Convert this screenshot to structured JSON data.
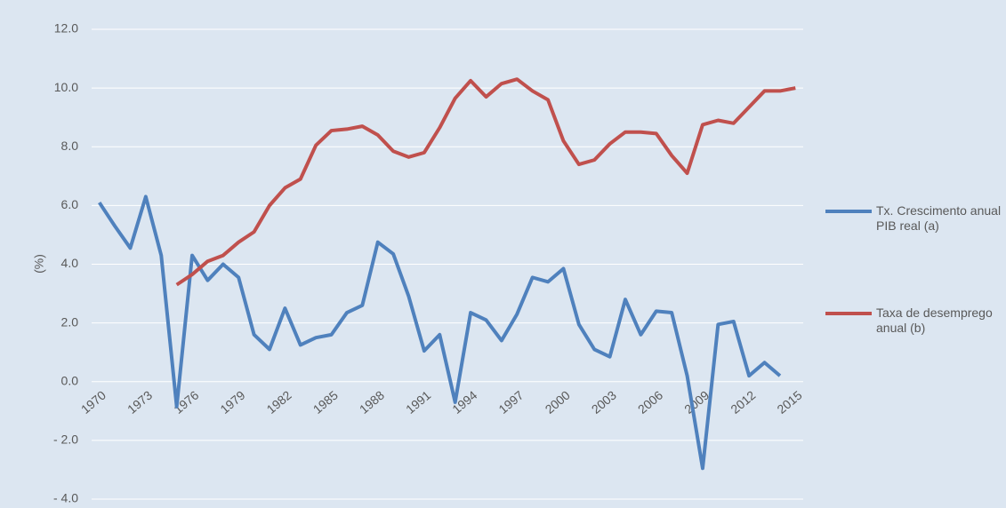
{
  "chart_data": {
    "type": "line",
    "y_label": "(%)",
    "x": [
      1970,
      1971,
      1972,
      1973,
      1974,
      1975,
      1976,
      1977,
      1978,
      1979,
      1980,
      1981,
      1982,
      1983,
      1984,
      1985,
      1986,
      1987,
      1988,
      1989,
      1990,
      1991,
      1992,
      1993,
      1994,
      1995,
      1996,
      1997,
      1998,
      1999,
      2000,
      2001,
      2002,
      2003,
      2004,
      2005,
      2006,
      2007,
      2008,
      2009,
      2010,
      2011,
      2012,
      2013,
      2014,
      2015
    ],
    "xlim": [
      1969.5,
      2015.5
    ],
    "xticks": [
      1970,
      1973,
      1976,
      1979,
      1982,
      1985,
      1988,
      1991,
      1994,
      1997,
      2000,
      2003,
      2006,
      2009,
      2012,
      2015
    ],
    "ylim": [
      -4,
      12
    ],
    "yticks": [
      {
        "value": 12,
        "label": "12.0"
      },
      {
        "value": 10,
        "label": "10.0"
      },
      {
        "value": 8,
        "label": "8.0"
      },
      {
        "value": 6,
        "label": "6.0"
      },
      {
        "value": 4,
        "label": "4.0"
      },
      {
        "value": 2,
        "label": "2.0"
      },
      {
        "value": 0,
        "label": "0.0"
      },
      {
        "value": -2,
        "label": "- 2.0"
      },
      {
        "value": -4,
        "label": "- 4.0"
      }
    ],
    "grid": true,
    "legend": "right",
    "series": [
      {
        "name": "Tx. Crescimento anual PIB real (a)",
        "color": "#4f81bd",
        "values": [
          6.1,
          5.3,
          4.55,
          6.3,
          4.3,
          -0.85,
          4.3,
          3.45,
          4.0,
          3.55,
          1.6,
          1.1,
          2.5,
          1.25,
          1.5,
          1.6,
          2.35,
          2.6,
          4.75,
          4.35,
          2.9,
          1.05,
          1.6,
          -0.7,
          2.35,
          2.1,
          1.4,
          2.3,
          3.55,
          3.4,
          3.85,
          1.95,
          1.1,
          0.85,
          2.8,
          1.6,
          2.4,
          2.35,
          0.2,
          -2.95,
          1.95,
          2.05,
          0.2,
          0.65,
          0.2,
          null
        ]
      },
      {
        "name": "Taxa de desemprego anual (b)",
        "color": "#c0504d",
        "values": [
          null,
          null,
          null,
          null,
          null,
          3.3,
          3.65,
          4.1,
          4.3,
          4.75,
          5.1,
          6.0,
          6.6,
          6.9,
          8.05,
          8.55,
          8.6,
          8.7,
          8.4,
          7.85,
          7.65,
          7.8,
          8.65,
          9.65,
          10.25,
          9.7,
          10.15,
          10.3,
          9.9,
          9.6,
          8.2,
          7.4,
          7.55,
          8.1,
          8.5,
          8.5,
          8.45,
          7.7,
          7.1,
          8.75,
          8.9,
          8.8,
          9.35,
          9.9,
          9.9,
          10.0
        ]
      }
    ]
  }
}
